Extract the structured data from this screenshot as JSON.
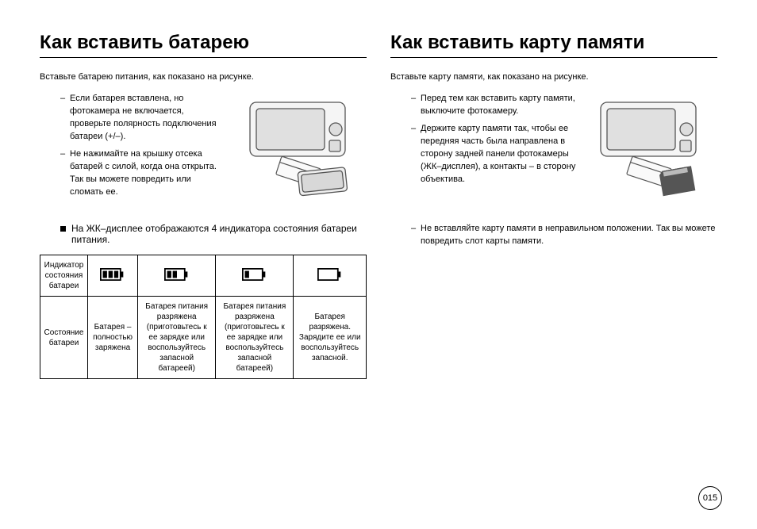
{
  "left": {
    "title": "Как вставить батарею",
    "intro": "Вставьте батарею питания, как показано на рисунке.",
    "bullets": [
      "Если батарея вставлена, но фотокамера не включается, проверьте полярность подключения батареи (+/–).",
      "Не нажимайте на крышку отсека батарей с силой, когда она открыта. Так вы можете повредить или сломать ее."
    ],
    "sub_note": "На ЖК–дисплее отображаются 4 индикатора состояния батареи питания.",
    "table": {
      "row1_header": "Индикатор состояния батареи",
      "row2_header": "Состояние батареи",
      "cells": [
        "Батарея – полностью заряжена",
        "Батарея питания разряжена (приготовьтесь к ее зарядке или воспользуйтесь запасной батареей)",
        "Батарея питания разряжена (приготовьтесь к ее зарядке или воспользуйтесь запасной батареей)",
        "Батарея разряжена. Зарядите ее или воспользуйтесь запасной."
      ],
      "battery_bars": [
        3,
        2,
        1,
        0
      ]
    }
  },
  "right": {
    "title": "Как вставить карту памяти",
    "intro": "Вставьте карту памяти, как показано на рисунке.",
    "bullets": [
      "Перед тем как вставить карту памяти, выключите фотокамеру.",
      "Держите карту памяти так, чтобы ее передняя часть была направлена в сторону задней панели фотокамеры (ЖК–дисплея), а контакты – в сторону объектива."
    ],
    "bullets_full": [
      "Не вставляйте карту памяти в неправильном положении. Так вы можете повредить слот карты памяти."
    ]
  },
  "page_number": "015",
  "colors": {
    "text": "#000000",
    "border": "#000000",
    "bg": "#ffffff",
    "illus_fill": "#f0f0f0",
    "illus_stroke": "#555555"
  }
}
